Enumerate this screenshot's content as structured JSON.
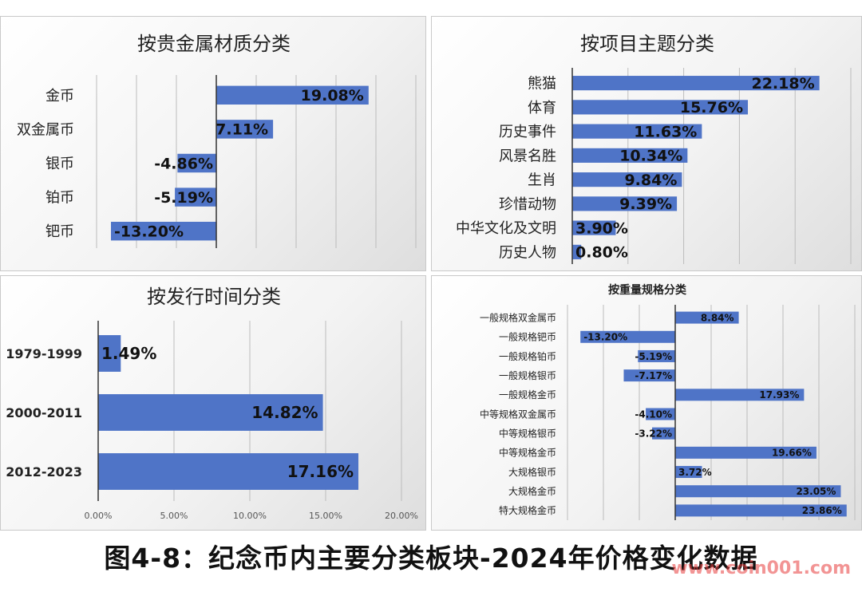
{
  "chart_data": [
    {
      "type": "bar",
      "title": "按贵金属材质分类",
      "categories": [
        "金币",
        "双金属币",
        "银币",
        "铂币",
        "钯币"
      ],
      "values": [
        19.08,
        7.11,
        -4.86,
        -5.19,
        -13.2
      ],
      "labels": [
        "19.08%",
        "7.11%",
        "-4.86%",
        "-5.19%",
        "-13.20%"
      ],
      "xlim": [
        -15,
        25
      ],
      "grid": true
    },
    {
      "type": "bar",
      "title": "按项目主题分类",
      "categories": [
        "熊猫",
        "体育",
        "历史事件",
        "风景名胜",
        "生肖",
        "珍惜动物",
        "中华文化及文明",
        "历史人物"
      ],
      "values": [
        22.18,
        15.76,
        11.63,
        10.34,
        9.84,
        9.39,
        3.9,
        0.8
      ],
      "labels": [
        "22.18%",
        "15.76%",
        "11.63%",
        "10.34%",
        "9.84%",
        "9.39%",
        "3.90%",
        "0.80%"
      ],
      "xlim": [
        0,
        25
      ],
      "grid": true
    },
    {
      "type": "bar",
      "title": "按发行时间分类",
      "categories": [
        "1979-1999",
        "2000-2011",
        "2012-2023"
      ],
      "values": [
        1.49,
        14.82,
        17.16
      ],
      "labels": [
        "1.49%",
        "14.82%",
        "17.16%"
      ],
      "xticks": [
        "0.00%",
        "5.00%",
        "10.00%",
        "15.00%",
        "20.00%"
      ],
      "xlim": [
        0,
        20
      ],
      "grid": true
    },
    {
      "type": "bar",
      "title": "按重量规格分类",
      "categories": [
        "一般规格双金属币",
        "一般规格钯币",
        "一般规格铂币",
        "一般规格银币",
        "一般规格金币",
        "中等规格双金属币",
        "中等规格银币",
        "中等规格金币",
        "大规格银币",
        "大规格金币",
        "特大规格金币"
      ],
      "values": [
        8.84,
        -13.2,
        -5.19,
        -7.17,
        17.93,
        -4.1,
        -3.22,
        19.66,
        3.72,
        23.05,
        23.86
      ],
      "labels": [
        "8.84%",
        "-13.20%",
        "-5.19%",
        "-7.17%",
        "17.93%",
        "-4.10%",
        "-3.22%",
        "19.66%",
        "3.72%",
        "23.05%",
        "23.86%"
      ],
      "xlim": [
        -15,
        25
      ],
      "grid": true
    }
  ],
  "footer_title": "图4-8：纪念币内主要分类板块-2024年价格变化数据",
  "watermark": "www.coin001.com",
  "colors": {
    "bar": "#4f74c7",
    "grid": "#bcbcbc",
    "axis": "#333333"
  }
}
